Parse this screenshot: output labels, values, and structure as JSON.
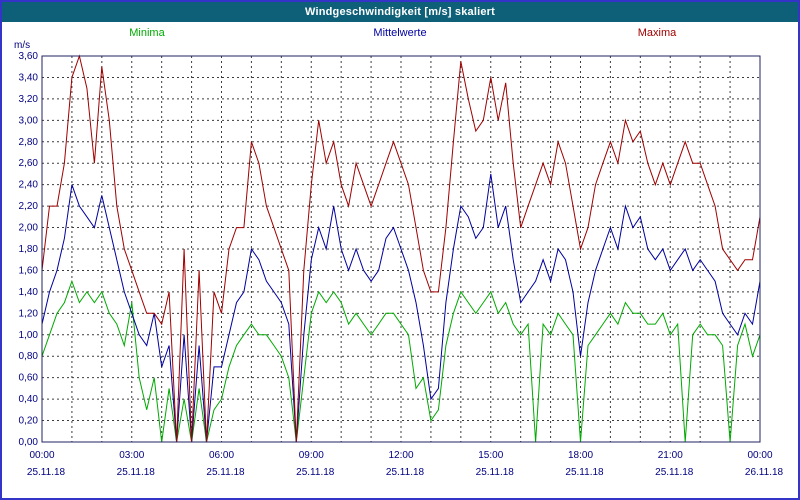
{
  "window": {
    "title": "Windgeschwindigkeit [m/s] skaliert"
  },
  "colors": {
    "titlebar_bg": "#0e6078",
    "titlebar_text": "#ffffff",
    "outer_border": "#3434c8",
    "axis_text": "#000080",
    "grid": "#3c3c3c",
    "minima": "#00aa00",
    "mittelwerte": "#0000a0",
    "maxima": "#a00000"
  },
  "chart_data": {
    "type": "line",
    "title": "Windgeschwindigkeit [m/s] skaliert",
    "ylabel": "m/s",
    "xlabel": "",
    "ylim": [
      0,
      3.6
    ],
    "y_tick_step": 0.2,
    "y_ticks": [
      "0,00",
      "0,20",
      "0,40",
      "0,60",
      "0,80",
      "1,00",
      "1,20",
      "1,40",
      "1,60",
      "1,80",
      "2,00",
      "2,20",
      "2,40",
      "2,60",
      "2,80",
      "3,00",
      "3,20",
      "3,40",
      "3,60"
    ],
    "grid": {
      "style": "dashed",
      "horizontal_step": 0.2,
      "vertical_step_hours": 1
    },
    "legend_position": "top",
    "x_axis": {
      "hours_span": 24,
      "tick_interval_hours": 3,
      "minor_grid_hours": 1,
      "ticks": [
        {
          "time": "00:00",
          "date": "25.11.18"
        },
        {
          "time": "03:00",
          "date": "25.11.18"
        },
        {
          "time": "06:00",
          "date": "25.11.18"
        },
        {
          "time": "09:00",
          "date": "25.11.18"
        },
        {
          "time": "12:00",
          "date": "25.11.18"
        },
        {
          "time": "15:00",
          "date": "25.11.18"
        },
        {
          "time": "18:00",
          "date": "25.11.18"
        },
        {
          "time": "21:00",
          "date": "25.11.18"
        },
        {
          "time": "00:00",
          "date": "26.11.18"
        }
      ]
    },
    "sample_interval_hours": 0.25,
    "series": [
      {
        "name": "Minima",
        "color": "#00aa00",
        "values": [
          0.8,
          1.0,
          1.2,
          1.3,
          1.5,
          1.3,
          1.4,
          1.3,
          1.4,
          1.2,
          1.1,
          0.9,
          1.3,
          0.6,
          0.3,
          0.6,
          0.0,
          0.5,
          0.0,
          0.4,
          0.0,
          0.5,
          0.0,
          0.3,
          0.4,
          0.7,
          0.9,
          1.0,
          1.1,
          1.0,
          1.0,
          0.9,
          0.8,
          0.6,
          0.0,
          0.6,
          1.2,
          1.4,
          1.3,
          1.4,
          1.3,
          1.1,
          1.2,
          1.1,
          1.0,
          1.1,
          1.2,
          1.2,
          1.1,
          1.0,
          0.5,
          0.6,
          0.2,
          0.3,
          0.9,
          1.2,
          1.4,
          1.3,
          1.2,
          1.3,
          1.4,
          1.2,
          1.3,
          1.1,
          1.0,
          1.1,
          0.0,
          1.1,
          1.0,
          1.2,
          1.1,
          1.0,
          0.0,
          0.9,
          1.0,
          1.1,
          1.2,
          1.1,
          1.3,
          1.2,
          1.2,
          1.1,
          1.1,
          1.2,
          1.0,
          1.1,
          0.0,
          1.0,
          1.1,
          1.0,
          1.0,
          0.9,
          0.0,
          0.9,
          1.1,
          0.8,
          1.0
        ]
      },
      {
        "name": "Mittelwerte",
        "color": "#0000a0",
        "values": [
          1.1,
          1.4,
          1.6,
          1.9,
          2.4,
          2.2,
          2.1,
          2.0,
          2.3,
          2.0,
          1.7,
          1.4,
          1.2,
          1.0,
          0.9,
          1.2,
          0.7,
          0.9,
          0.0,
          1.0,
          0.0,
          0.9,
          0.0,
          0.7,
          0.7,
          1.0,
          1.3,
          1.4,
          1.8,
          1.7,
          1.5,
          1.4,
          1.3,
          1.1,
          0.0,
          1.0,
          1.7,
          2.0,
          1.8,
          2.2,
          1.8,
          1.6,
          1.8,
          1.6,
          1.5,
          1.6,
          1.9,
          2.0,
          1.8,
          1.6,
          1.3,
          0.9,
          0.4,
          0.5,
          1.3,
          1.8,
          2.2,
          2.1,
          1.9,
          2.0,
          2.5,
          2.0,
          2.2,
          1.7,
          1.3,
          1.4,
          1.5,
          1.7,
          1.5,
          1.8,
          1.7,
          1.4,
          0.8,
          1.3,
          1.6,
          1.8,
          2.0,
          1.8,
          2.2,
          2.0,
          2.1,
          1.8,
          1.7,
          1.8,
          1.6,
          1.7,
          1.8,
          1.6,
          1.7,
          1.6,
          1.5,
          1.2,
          1.1,
          1.0,
          1.2,
          1.1,
          1.5
        ]
      },
      {
        "name": "Maxima",
        "color": "#a00000",
        "values": [
          1.6,
          2.2,
          2.2,
          2.6,
          3.4,
          3.6,
          3.3,
          2.6,
          3.5,
          3.0,
          2.2,
          1.8,
          1.6,
          1.4,
          1.2,
          1.2,
          1.1,
          1.4,
          0.0,
          1.8,
          0.0,
          1.6,
          0.0,
          1.4,
          1.2,
          1.8,
          2.0,
          2.0,
          2.8,
          2.6,
          2.2,
          2.0,
          1.8,
          1.6,
          0.0,
          1.6,
          2.4,
          3.0,
          2.6,
          2.8,
          2.4,
          2.2,
          2.6,
          2.4,
          2.2,
          2.4,
          2.6,
          2.8,
          2.6,
          2.4,
          2.0,
          1.6,
          1.4,
          1.4,
          2.0,
          2.8,
          3.55,
          3.2,
          2.9,
          3.0,
          3.4,
          3.0,
          3.35,
          2.6,
          2.0,
          2.2,
          2.4,
          2.6,
          2.4,
          2.8,
          2.6,
          2.2,
          1.8,
          2.0,
          2.4,
          2.6,
          2.8,
          2.6,
          3.0,
          2.8,
          2.9,
          2.6,
          2.4,
          2.6,
          2.4,
          2.6,
          2.8,
          2.6,
          2.6,
          2.4,
          2.2,
          1.8,
          1.7,
          1.6,
          1.7,
          1.7,
          2.1
        ]
      }
    ]
  }
}
